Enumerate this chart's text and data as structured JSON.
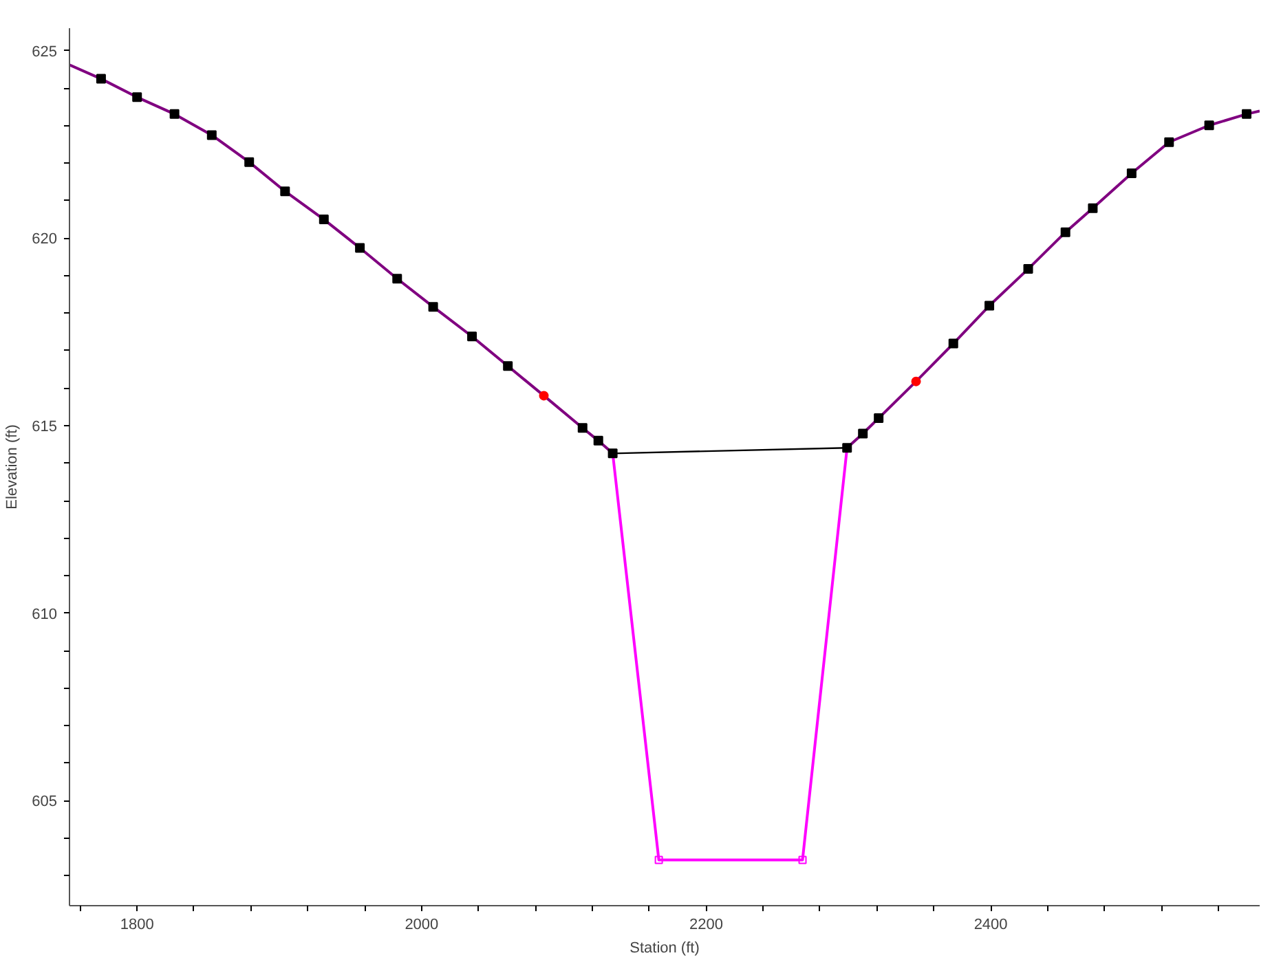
{
  "chart_data": {
    "type": "line",
    "xlabel": "Station (ft)",
    "ylabel": "Elevation (ft)",
    "xlim": [
      1752.5,
      2589
    ],
    "ylim": [
      602.2,
      625.6
    ],
    "xticks": [
      {
        "value": 1760,
        "label": null
      },
      1800,
      {
        "value": 1840,
        "label": null
      },
      {
        "value": 1880,
        "label": null
      },
      {
        "value": 1920,
        "label": null
      },
      {
        "value": 1960,
        "label": null
      },
      2000,
      {
        "value": 2040,
        "label": null
      },
      {
        "value": 2080,
        "label": null
      },
      {
        "value": 2120,
        "label": null
      },
      {
        "value": 2160,
        "label": null
      },
      2200,
      {
        "value": 2240,
        "label": null
      },
      {
        "value": 2280,
        "label": null
      },
      {
        "value": 2320,
        "label": null
      },
      {
        "value": 2360,
        "label": null
      },
      2400,
      {
        "value": 2440,
        "label": null
      },
      {
        "value": 2480,
        "label": null
      },
      {
        "value": 2520,
        "label": null
      },
      {
        "value": 2560,
        "label": null
      }
    ],
    "yticks": [
      {
        "value": 603,
        "label": null
      },
      {
        "value": 604,
        "label": null
      },
      605,
      {
        "value": 606,
        "label": null
      },
      {
        "value": 607,
        "label": null
      },
      {
        "value": 608,
        "label": null
      },
      {
        "value": 609,
        "label": null
      },
      610,
      {
        "value": 611,
        "label": null
      },
      {
        "value": 612,
        "label": null
      },
      {
        "value": 613,
        "label": null
      },
      {
        "value": 614,
        "label": null
      },
      615,
      {
        "value": 616,
        "label": null
      },
      {
        "value": 617,
        "label": null
      },
      {
        "value": 618,
        "label": null
      },
      {
        "value": 619,
        "label": null
      },
      620,
      {
        "value": 621,
        "label": null
      },
      {
        "value": 622,
        "label": null
      },
      {
        "value": 623,
        "label": null
      },
      {
        "value": 624,
        "label": null
      },
      625
    ],
    "grid": false,
    "line_style": "solid",
    "series": [
      {
        "color": "#800080",
        "marker": "none",
        "x": [
          1752.5,
          1774.7,
          1800,
          1826.3,
          1852.5,
          1878.8,
          1904,
          1931.3,
          1956.6,
          1982.8,
          2008.1,
          2035.4,
          2060.6,
          2085.9,
          2113.1,
          2124.2,
          2134.3
        ],
        "values": [
          624.62,
          624.25,
          623.76,
          623.31,
          622.75,
          622.03,
          621.25,
          620.5,
          619.74,
          618.92,
          618.17,
          617.38,
          616.59,
          615.8,
          614.94,
          614.6,
          614.26
        ]
      },
      {
        "color": "#ff00ff",
        "marker": "square",
        "x": [
          2134.3,
          2166.7,
          2267.7,
          2299
        ],
        "values": [
          614.26,
          603.42,
          603.42,
          614.41
        ]
      },
      {
        "color": "#800080",
        "marker": "none",
        "x": [
          2299,
          2310.1,
          2321.2,
          2347.5,
          2373.7,
          2399,
          2426.3,
          2452.5,
          2471.7,
          2499,
          2525.3,
          2553.5,
          2579.8,
          2589
        ],
        "values": [
          614.41,
          614.79,
          615.2,
          616.18,
          617.19,
          618.2,
          619.18,
          620.16,
          620.8,
          621.73,
          622.56,
          623.01,
          623.31,
          623.39
        ]
      },
      {
        "color": "#000000",
        "marker": "none",
        "x": [
          2134.3,
          2299
        ],
        "values": [
          614.26,
          614.41
        ]
      },
      {
        "type": "scatter",
        "color": "#000000",
        "marker": "square",
        "x": [
          1774.7,
          1800,
          1826.3,
          1852.5,
          1878.8,
          1904,
          1931.3,
          1956.6,
          1982.8,
          2008.1,
          2035.4,
          2060.6,
          2113.1,
          2124.2,
          2134.3,
          2299,
          2310.1,
          2321.2,
          2373.7,
          2399,
          2426.3,
          2452.5,
          2471.7,
          2499,
          2525.3,
          2553.5,
          2579.8
        ],
        "values": [
          624.25,
          623.76,
          623.31,
          622.75,
          622.03,
          621.25,
          620.5,
          619.74,
          618.92,
          618.17,
          617.38,
          616.59,
          614.94,
          614.6,
          614.26,
          614.41,
          614.79,
          615.2,
          617.19,
          618.2,
          619.18,
          620.16,
          620.8,
          621.73,
          622.56,
          623.01,
          623.31
        ]
      },
      {
        "type": "scatter",
        "color": "#ff0000",
        "marker": "circle",
        "x": [
          2085.9,
          2347.5
        ],
        "values": [
          615.8,
          616.18
        ]
      }
    ]
  }
}
